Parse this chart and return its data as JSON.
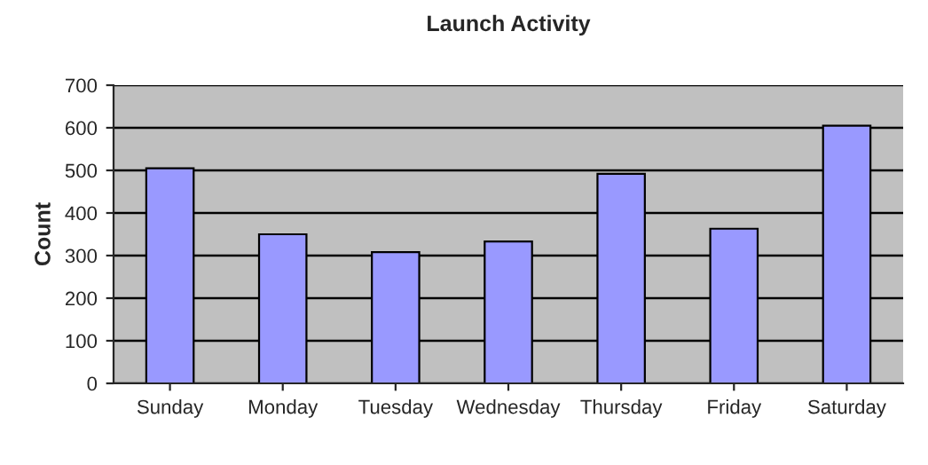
{
  "chart_data": {
    "type": "bar",
    "title": "Launch Activity",
    "ylabel": "Count",
    "categories": [
      "Sunday",
      "Monday",
      "Tuesday",
      "Wednesday",
      "Thursday",
      "Friday",
      "Saturday"
    ],
    "values": [
      505,
      350,
      308,
      333,
      492,
      363,
      605
    ],
    "color": "#9999ff",
    "ylim": [
      0,
      700
    ],
    "yticks": [
      0,
      100,
      200,
      300,
      400,
      500,
      600,
      700
    ],
    "grid": "y"
  }
}
